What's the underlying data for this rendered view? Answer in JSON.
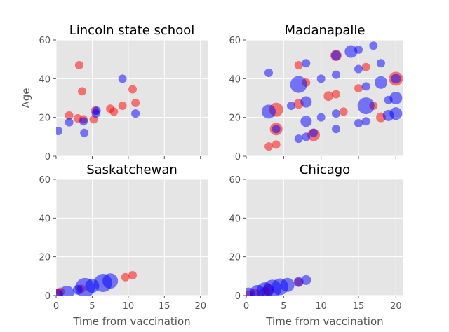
{
  "figure": {
    "background": "#ffffff",
    "panel_background": "#e5e5e5",
    "grid_color": "#ffffff",
    "text_color": "#555555",
    "title_color": "#000000"
  },
  "chart_data": [
    {
      "type": "scatter",
      "title": "Lincoln state school",
      "xlabel": "",
      "ylabel": "Age",
      "xlim": [
        0,
        21
      ],
      "ylim": [
        0,
        60
      ],
      "xticks": [
        0,
        5,
        10,
        15,
        20
      ],
      "yticks": [
        0,
        20,
        40,
        60
      ],
      "show_x_tick_labels": false,
      "show_y_tick_labels": true,
      "grid": true,
      "series": [
        {
          "color": "#ff0000",
          "points": [
            {
              "x": 1.8,
              "y": 21,
              "r": 6
            },
            {
              "x": 3.0,
              "y": 19.5,
              "r": 6
            },
            {
              "x": 3.2,
              "y": 47,
              "r": 6
            },
            {
              "x": 3.6,
              "y": 33.5,
              "r": 6
            },
            {
              "x": 3.8,
              "y": 19,
              "r": 6
            },
            {
              "x": 5.2,
              "y": 19,
              "r": 6
            },
            {
              "x": 5.4,
              "y": 23.5,
              "r": 6
            },
            {
              "x": 7.5,
              "y": 24.5,
              "r": 6
            },
            {
              "x": 8.0,
              "y": 23,
              "r": 6
            },
            {
              "x": 9.2,
              "y": 26,
              "r": 6
            },
            {
              "x": 10.6,
              "y": 34.5,
              "r": 6
            },
            {
              "x": 11.0,
              "y": 27.5,
              "r": 6
            }
          ]
        },
        {
          "color": "#0000ff",
          "points": [
            {
              "x": 0.3,
              "y": 13,
              "r": 6
            },
            {
              "x": 1.8,
              "y": 17.5,
              "r": 6
            },
            {
              "x": 3.8,
              "y": 18,
              "r": 6
            },
            {
              "x": 3.9,
              "y": 12,
              "r": 6
            },
            {
              "x": 5.5,
              "y": 22,
              "r": 6
            },
            {
              "x": 5.6,
              "y": 23.5,
              "r": 6
            },
            {
              "x": 9.2,
              "y": 40,
              "r": 6
            },
            {
              "x": 11.0,
              "y": 22,
              "r": 6
            }
          ]
        }
      ]
    },
    {
      "type": "scatter",
      "title": "Madanapalle",
      "xlabel": "",
      "ylabel": "",
      "xlim": [
        0,
        21
      ],
      "ylim": [
        0,
        60
      ],
      "xticks": [
        0,
        5,
        10,
        15,
        20
      ],
      "yticks": [
        0,
        20,
        40,
        60
      ],
      "show_x_tick_labels": false,
      "show_y_tick_labels": true,
      "grid": true,
      "series": [
        {
          "color": "#ff0000",
          "points": [
            {
              "x": 3.0,
              "y": 5,
              "r": 6
            },
            {
              "x": 4.0,
              "y": 6,
              "r": 6
            },
            {
              "x": 4.0,
              "y": 14,
              "r": 9
            },
            {
              "x": 4.0,
              "y": 24,
              "r": 10
            },
            {
              "x": 7.0,
              "y": 27,
              "r": 7
            },
            {
              "x": 7.0,
              "y": 47,
              "r": 6
            },
            {
              "x": 8.0,
              "y": 38,
              "r": 6
            },
            {
              "x": 9.0,
              "y": 11,
              "r": 9
            },
            {
              "x": 11.0,
              "y": 31,
              "r": 7
            },
            {
              "x": 12.0,
              "y": 32,
              "r": 6
            },
            {
              "x": 12.0,
              "y": 52,
              "r": 8
            },
            {
              "x": 13.0,
              "y": 23,
              "r": 6
            },
            {
              "x": 15.0,
              "y": 35,
              "r": 6
            },
            {
              "x": 16.0,
              "y": 46,
              "r": 6
            },
            {
              "x": 17.0,
              "y": 26,
              "r": 6
            },
            {
              "x": 18.0,
              "y": 20,
              "r": 7
            },
            {
              "x": 20.0,
              "y": 40,
              "r": 10
            }
          ]
        },
        {
          "color": "#0000ff",
          "points": [
            {
              "x": 3.0,
              "y": 23,
              "r": 10
            },
            {
              "x": 3.0,
              "y": 43,
              "r": 6
            },
            {
              "x": 4.0,
              "y": 14,
              "r": 6
            },
            {
              "x": 6.0,
              "y": 26,
              "r": 6
            },
            {
              "x": 7.0,
              "y": 9,
              "r": 6
            },
            {
              "x": 7.0,
              "y": 37,
              "r": 12
            },
            {
              "x": 8.0,
              "y": 10,
              "r": 6
            },
            {
              "x": 8.0,
              "y": 18,
              "r": 8
            },
            {
              "x": 8.0,
              "y": 28,
              "r": 8
            },
            {
              "x": 8.0,
              "y": 48,
              "r": 6
            },
            {
              "x": 9.0,
              "y": 12,
              "r": 6
            },
            {
              "x": 10.0,
              "y": 20,
              "r": 6
            },
            {
              "x": 10.0,
              "y": 40,
              "r": 6
            },
            {
              "x": 12.0,
              "y": 14,
              "r": 6
            },
            {
              "x": 12.0,
              "y": 22,
              "r": 6
            },
            {
              "x": 12.0,
              "y": 42,
              "r": 6
            },
            {
              "x": 12.0,
              "y": 52,
              "r": 7
            },
            {
              "x": 14.0,
              "y": 54,
              "r": 9
            },
            {
              "x": 15.0,
              "y": 17,
              "r": 6
            },
            {
              "x": 15.0,
              "y": 45,
              "r": 6
            },
            {
              "x": 15.0,
              "y": 55,
              "r": 6
            },
            {
              "x": 16.0,
              "y": 18,
              "r": 6
            },
            {
              "x": 16.0,
              "y": 26,
              "r": 12
            },
            {
              "x": 16.0,
              "y": 36,
              "r": 6
            },
            {
              "x": 17.0,
              "y": 57,
              "r": 6
            },
            {
              "x": 18.0,
              "y": 38,
              "r": 9
            },
            {
              "x": 18.0,
              "y": 48,
              "r": 6
            },
            {
              "x": 19.0,
              "y": 21,
              "r": 8
            },
            {
              "x": 19.0,
              "y": 29,
              "r": 6
            },
            {
              "x": 20.0,
              "y": 22,
              "r": 9
            },
            {
              "x": 20.0,
              "y": 30,
              "r": 9
            },
            {
              "x": 20.0,
              "y": 40,
              "r": 7
            }
          ]
        }
      ]
    },
    {
      "type": "scatter",
      "title": "Saskatchewan",
      "xlabel": "Time from vaccination",
      "ylabel": "",
      "xlim": [
        0,
        21
      ],
      "ylim": [
        0,
        60
      ],
      "xticks": [
        0,
        5,
        10,
        15,
        20
      ],
      "yticks": [
        0,
        20,
        40,
        60
      ],
      "show_x_tick_labels": true,
      "show_y_tick_labels": true,
      "grid": true,
      "series": [
        {
          "color": "#ff0000",
          "points": [
            {
              "x": 0.2,
              "y": 1.5,
              "r": 5
            },
            {
              "x": 0.6,
              "y": 2,
              "r": 6
            },
            {
              "x": 3.5,
              "y": 3.5,
              "r": 6
            },
            {
              "x": 9.6,
              "y": 9.5,
              "r": 6
            },
            {
              "x": 10.6,
              "y": 10.5,
              "r": 6
            }
          ]
        },
        {
          "color": "#0000ff",
          "points": [
            {
              "x": 0.2,
              "y": 0.5,
              "r": 8
            },
            {
              "x": 1.5,
              "y": 1.5,
              "r": 10
            },
            {
              "x": 3.0,
              "y": 3,
              "r": 7
            },
            {
              "x": 4.0,
              "y": 4,
              "r": 14
            },
            {
              "x": 5.0,
              "y": 5,
              "r": 10
            },
            {
              "x": 6.5,
              "y": 6.5,
              "r": 13
            },
            {
              "x": 7.5,
              "y": 7.5,
              "r": 11
            }
          ]
        }
      ]
    },
    {
      "type": "scatter",
      "title": "Chicago",
      "xlabel": "Time from vaccination",
      "ylabel": "",
      "xlim": [
        0,
        21
      ],
      "ylim": [
        0,
        60
      ],
      "xticks": [
        0,
        5,
        10,
        15,
        20
      ],
      "yticks": [
        0,
        20,
        40,
        60
      ],
      "show_x_tick_labels": true,
      "show_y_tick_labels": true,
      "grid": true,
      "series": [
        {
          "color": "#ff0000",
          "points": [
            {
              "x": 0.3,
              "y": 0.5,
              "r": 6
            },
            {
              "x": 1.2,
              "y": 1.0,
              "r": 7
            },
            {
              "x": 2.5,
              "y": 2,
              "r": 7
            },
            {
              "x": 3.0,
              "y": 3,
              "r": 8
            },
            {
              "x": 7.0,
              "y": 7,
              "r": 6
            }
          ]
        },
        {
          "color": "#0000ff",
          "points": [
            {
              "x": 0.3,
              "y": 0.5,
              "r": 10
            },
            {
              "x": 1.5,
              "y": 1.5,
              "r": 11
            },
            {
              "x": 2.5,
              "y": 2.5,
              "r": 12
            },
            {
              "x": 3.5,
              "y": 3.5,
              "r": 13
            },
            {
              "x": 4.5,
              "y": 4.5,
              "r": 12
            },
            {
              "x": 5.5,
              "y": 5.5,
              "r": 10
            },
            {
              "x": 7.0,
              "y": 7,
              "r": 7
            },
            {
              "x": 8.0,
              "y": 8,
              "r": 7
            }
          ]
        }
      ]
    }
  ]
}
